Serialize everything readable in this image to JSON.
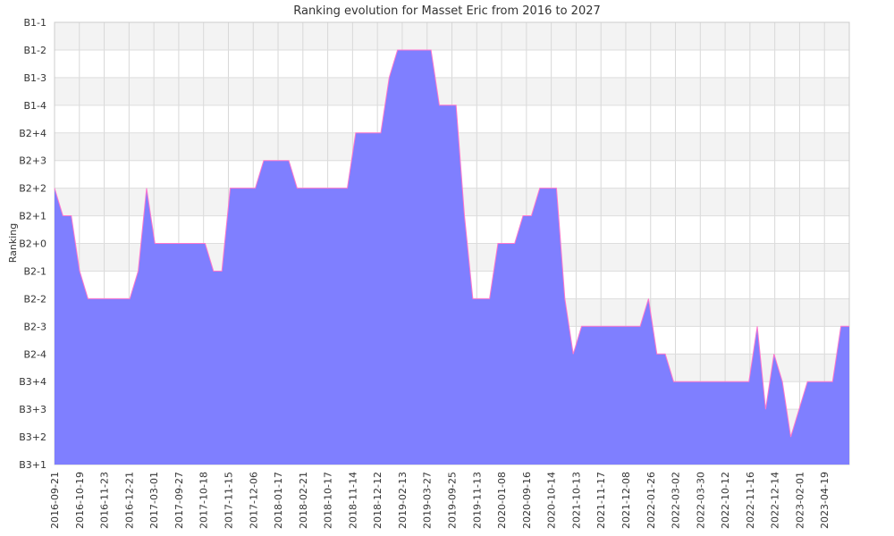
{
  "chart_data": {
    "type": "area",
    "title": "Ranking evolution for Masset Eric from 2016 to 2027",
    "xlabel": "",
    "ylabel": "Ranking",
    "y_categories": [
      "B3+1",
      "B3+2",
      "B3+3",
      "B3+4",
      "B2-4",
      "B2-3",
      "B2-2",
      "B2-1",
      "B2+0",
      "B2+1",
      "B2+2",
      "B2+3",
      "B2+4",
      "B1-4",
      "B1-3",
      "B1-2",
      "B1-1"
    ],
    "x_tick_labels": [
      "2016-09-21",
      "2016-10-19",
      "2016-11-23",
      "2016-12-21",
      "2017-03-01",
      "2017-09-27",
      "2017-10-18",
      "2017-11-15",
      "2017-12-06",
      "2018-01-17",
      "2018-02-21",
      "2018-10-17",
      "2018-11-14",
      "2018-12-12",
      "2019-02-13",
      "2019-03-27",
      "2019-09-25",
      "2019-11-13",
      "2020-01-08",
      "2020-09-16",
      "2020-10-14",
      "2021-10-13",
      "2021-11-17",
      "2021-12-08",
      "2022-01-26",
      "2022-03-02",
      "2022-03-30",
      "2022-10-12",
      "2022-11-16",
      "2022-12-14",
      "2023-02-01",
      "2023-04-19"
    ],
    "x_range": [
      0,
      95
    ],
    "grid": true,
    "fill_color": "#7f7fff",
    "line_color": "#ff77cc",
    "band_color": "#f3f3f3",
    "series": [
      {
        "x": [
          0,
          1,
          2,
          3,
          4,
          5,
          6,
          7,
          8,
          9,
          10,
          11,
          12,
          13,
          14,
          15,
          16,
          17,
          18,
          19,
          20,
          21,
          22,
          23,
          24,
          25,
          26,
          27,
          28,
          29,
          30,
          31,
          32,
          33,
          34,
          35,
          36,
          37,
          38,
          39,
          40,
          41,
          42,
          43,
          44,
          45,
          46,
          47,
          48,
          49,
          50,
          51,
          52,
          53,
          54,
          55,
          56,
          57,
          58,
          59,
          60,
          61,
          62,
          63,
          64,
          65,
          66,
          67,
          68,
          69,
          70,
          71,
          72,
          73,
          74,
          75,
          76,
          77,
          78,
          79,
          80,
          81,
          82,
          83,
          84,
          85,
          86,
          87,
          88,
          89,
          90,
          91,
          92,
          93,
          94,
          95
        ],
        "y": [
          "B2+2",
          "B2+1",
          "B2+1",
          "B2-1",
          "B2-2",
          "B2-2",
          "B2-2",
          "B2-2",
          "B2-2",
          "B2-2",
          "B2-1",
          "B2+2",
          "B2+0",
          "B2+0",
          "B2+0",
          "B2+0",
          "B2+0",
          "B2+0",
          "B2+0",
          "B2-1",
          "B2-1",
          "B2+2",
          "B2+2",
          "B2+2",
          "B2+2",
          "B2+3",
          "B2+3",
          "B2+3",
          "B2+3",
          "B2+2",
          "B2+2",
          "B2+2",
          "B2+2",
          "B2+2",
          "B2+2",
          "B2+2",
          "B2+4",
          "B2+4",
          "B2+4",
          "B2+4",
          "B1-3",
          "B1-2",
          "B1-2",
          "B1-2",
          "B1-2",
          "B1-2",
          "B1-4",
          "B1-4",
          "B1-4",
          "B2+1",
          "B2-2",
          "B2-2",
          "B2-2",
          "B2+0",
          "B2+0",
          "B2+0",
          "B2+1",
          "B2+1",
          "B2+2",
          "B2+2",
          "B2+2",
          "B2-2",
          "B2-4",
          "B2-3",
          "B2-3",
          "B2-3",
          "B2-3",
          "B2-3",
          "B2-3",
          "B2-3",
          "B2-3",
          "B2-2",
          "B2-4",
          "B2-4",
          "B3+4",
          "B3+4",
          "B3+4",
          "B3+4",
          "B3+4",
          "B3+4",
          "B3+4",
          "B3+4",
          "B3+4",
          "B3+4",
          "B2-3",
          "B3+3",
          "B2-4",
          "B3+4",
          "B3+2",
          "B3+3",
          "B3+4",
          "B3+4",
          "B3+4",
          "B3+4",
          "B2-3",
          "B2-3"
        ]
      }
    ]
  }
}
